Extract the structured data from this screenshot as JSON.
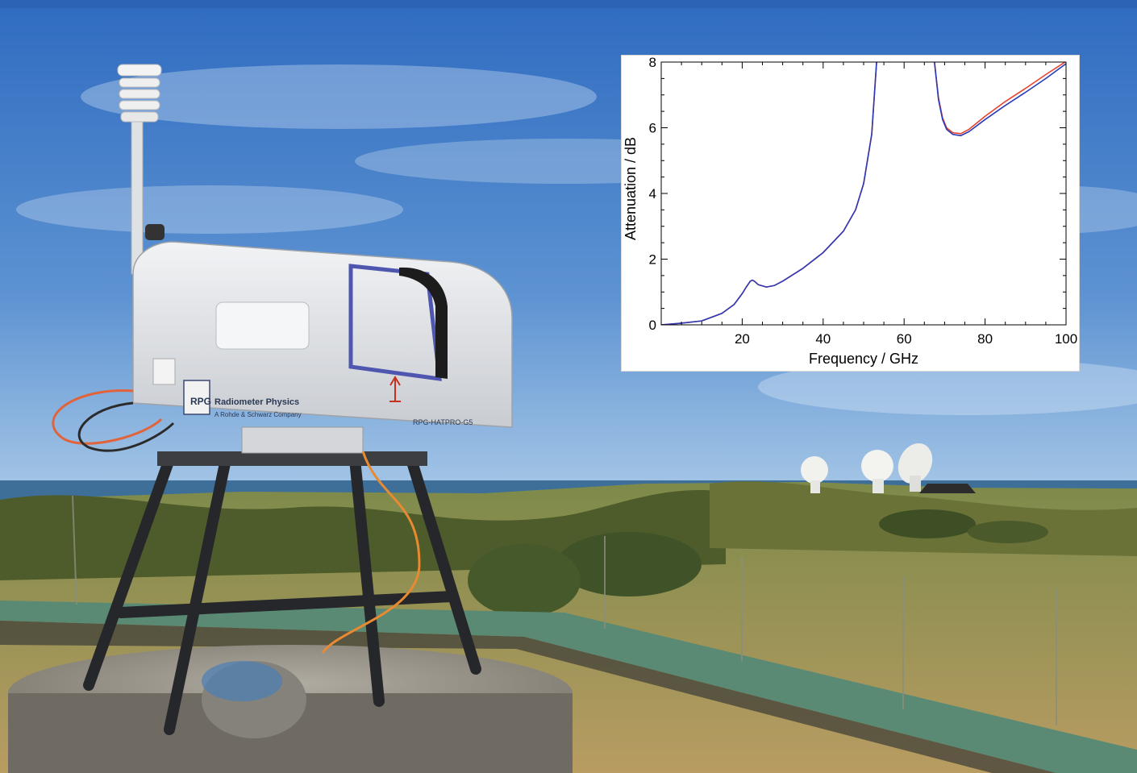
{
  "photo": {
    "instrument_brand": "Radiometer Physics",
    "instrument_company": "A Rohde & Schwarz Company",
    "instrument_logo": "RPG",
    "instrument_model": "RPG-HATPRO-G5"
  },
  "colors": {
    "sky_top": "#2f6bc0",
    "sky_bottom": "#8fb8df",
    "sea": "#3d6f99",
    "vegetation": "#5a6b2e",
    "dry_grass": "#b89c62",
    "instrument_body": "#e7e9ec",
    "series_red": "#e8432c",
    "series_blue": "#2b39b7"
  },
  "chart_data": {
    "type": "line",
    "title": "",
    "xlabel": "Frequency / GHz",
    "ylabel": "Attenuation / dB",
    "xlim": [
      0,
      100
    ],
    "ylim": [
      0,
      8
    ],
    "xticks": [
      "20",
      "40",
      "60",
      "80",
      "100"
    ],
    "yticks": [
      "0",
      "2",
      "4",
      "6",
      "8"
    ],
    "grid": false,
    "legend": "none",
    "series": [
      {
        "color": "#e8432c",
        "x": [
          0,
          5,
          10,
          15,
          18,
          20,
          21,
          22,
          22.5,
          23,
          24,
          26,
          28,
          30,
          35,
          40,
          45,
          48,
          50,
          52,
          53.2,
          null,
          67.5,
          68.5,
          69.5,
          70.5,
          72,
          74,
          76,
          80,
          85,
          90,
          95,
          100
        ],
        "y": [
          0,
          0.05,
          0.12,
          0.35,
          0.62,
          0.95,
          1.15,
          1.33,
          1.36,
          1.33,
          1.22,
          1.15,
          1.2,
          1.33,
          1.72,
          2.2,
          2.85,
          3.5,
          4.3,
          5.8,
          8,
          null,
          8,
          6.9,
          6.3,
          6.0,
          5.85,
          5.82,
          5.95,
          6.35,
          6.8,
          7.2,
          7.62,
          8.02
        ]
      },
      {
        "color": "#2b39b7",
        "x": [
          0,
          5,
          10,
          15,
          18,
          20,
          21,
          22,
          22.5,
          23,
          24,
          26,
          28,
          30,
          35,
          40,
          45,
          48,
          50,
          52,
          53.2,
          null,
          67.5,
          68.5,
          69.5,
          70.5,
          72,
          74,
          76,
          80,
          85,
          90,
          95,
          100
        ],
        "y": [
          0,
          0.05,
          0.12,
          0.35,
          0.62,
          0.95,
          1.15,
          1.33,
          1.36,
          1.33,
          1.22,
          1.15,
          1.2,
          1.33,
          1.72,
          2.2,
          2.85,
          3.5,
          4.3,
          5.8,
          8,
          null,
          8,
          6.85,
          6.25,
          5.95,
          5.8,
          5.76,
          5.88,
          6.25,
          6.68,
          7.08,
          7.5,
          7.95
        ]
      }
    ]
  }
}
